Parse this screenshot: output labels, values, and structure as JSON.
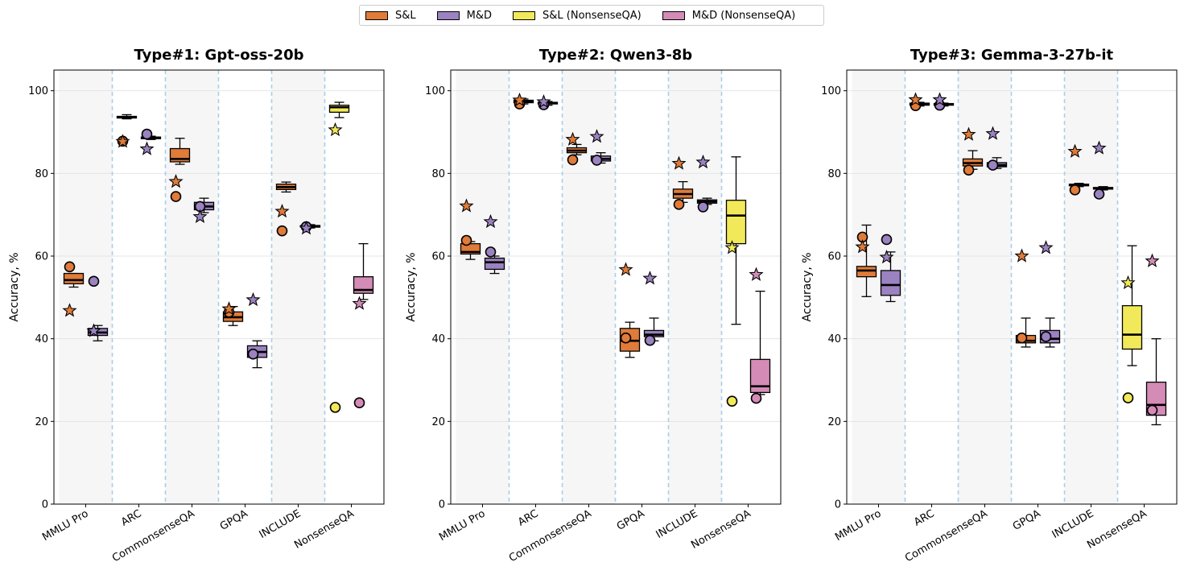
{
  "chart_data": {
    "type": "box",
    "legend": [
      {
        "name": "S&L",
        "color": "#e07b39"
      },
      {
        "name": "M&D",
        "color": "#9b82c0"
      },
      {
        "name": "S&L (NonsenseQA)",
        "color": "#f2e95a"
      },
      {
        "name": "M&D (NonsenseQA)",
        "color": "#d48bb6"
      }
    ],
    "ylabel": "Accuracy, %",
    "ylim": [
      0,
      105
    ],
    "yticks": [
      0,
      20,
      40,
      60,
      80,
      100
    ],
    "categories": [
      "MMLU Pro",
      "ARC",
      "CommonsenseQA",
      "GPQA",
      "INCLUDE",
      "NonsenseQA"
    ],
    "panels": [
      {
        "title": "Type#1: Gpt-oss-20b",
        "boxes": [
          {
            "category": "MMLU Pro",
            "group": "S&L",
            "min": 52.5,
            "q1": 53.3,
            "median": 54.2,
            "q3": 55.8,
            "max": 55.8,
            "circle": 57.4,
            "star": 46.8
          },
          {
            "category": "MMLU Pro",
            "group": "M&D",
            "min": 39.5,
            "q1": 40.8,
            "median": 41.5,
            "q3": 42.5,
            "max": 43.2,
            "circle": 53.9,
            "star": 41.9
          },
          {
            "category": "ARC",
            "group": "S&L",
            "min": 93.2,
            "q1": 93.4,
            "median": 93.6,
            "q3": 93.8,
            "max": 94.2,
            "circle": 87.8,
            "star": 87.7
          },
          {
            "category": "ARC",
            "group": "M&D",
            "min": 88.2,
            "q1": 88.4,
            "median": 88.6,
            "q3": 88.8,
            "max": 89.0,
            "circle": 89.5,
            "star": 85.9
          },
          {
            "category": "CommonsenseQA",
            "group": "S&L",
            "min": 82.2,
            "q1": 82.8,
            "median": 83.5,
            "q3": 86.0,
            "max": 88.5,
            "circle": 74.4,
            "star": 78.0
          },
          {
            "category": "CommonsenseQA",
            "group": "M&D",
            "min": 70.5,
            "q1": 71.2,
            "median": 72.0,
            "q3": 73.0,
            "max": 74.0,
            "circle": 72.0,
            "star": 69.5
          },
          {
            "category": "GPQA",
            "group": "S&L",
            "min": 43.2,
            "q1": 44.2,
            "median": 45.2,
            "q3": 46.5,
            "max": 47.8,
            "circle": 46.4,
            "star": 47.2
          },
          {
            "category": "GPQA",
            "group": "M&D",
            "min": 33.0,
            "q1": 35.5,
            "median": 36.8,
            "q3": 38.3,
            "max": 39.5,
            "circle": 36.3,
            "star": 49.4
          },
          {
            "category": "INCLUDE",
            "group": "S&L",
            "min": 75.5,
            "q1": 76.1,
            "median": 76.7,
            "q3": 77.4,
            "max": 77.9,
            "circle": 66.1,
            "star": 70.8
          },
          {
            "category": "INCLUDE",
            "group": "M&D",
            "min": 66.8,
            "q1": 67.0,
            "median": 67.2,
            "q3": 67.4,
            "max": 67.6,
            "circle": 67.1,
            "star": 66.7
          },
          {
            "category": "NonsenseQA",
            "group": "S&L (NonsenseQA)",
            "min": 93.5,
            "q1": 94.8,
            "median": 96.0,
            "q3": 96.5,
            "max": 97.2,
            "circle": 23.4,
            "star": 90.5
          },
          {
            "category": "NonsenseQA",
            "group": "M&D (NonsenseQA)",
            "min": 49.5,
            "q1": 51.0,
            "median": 51.8,
            "q3": 55.0,
            "max": 63.0,
            "circle": 24.5,
            "star": 48.5
          }
        ]
      },
      {
        "title": "Type#2: Qwen3-8b",
        "boxes": [
          {
            "category": "MMLU Pro",
            "group": "S&L",
            "min": 59.2,
            "q1": 60.5,
            "median": 61.0,
            "q3": 63.0,
            "max": 63.5,
            "circle": 63.8,
            "star": 72.1
          },
          {
            "category": "MMLU Pro",
            "group": "M&D",
            "min": 55.8,
            "q1": 56.8,
            "median": 58.5,
            "q3": 59.5,
            "max": 60.0,
            "circle": 61.0,
            "star": 68.3
          },
          {
            "category": "ARC",
            "group": "S&L",
            "min": 96.8,
            "q1": 97.1,
            "median": 97.4,
            "q3": 97.7,
            "max": 98.0,
            "circle": 96.8,
            "star": 97.7
          },
          {
            "category": "ARC",
            "group": "M&D",
            "min": 96.5,
            "q1": 96.8,
            "median": 97.0,
            "q3": 97.2,
            "max": 97.4,
            "circle": 96.6,
            "star": 97.3
          },
          {
            "category": "CommonsenseQA",
            "group": "S&L",
            "min": 84.5,
            "q1": 85.0,
            "median": 85.5,
            "q3": 86.2,
            "max": 87.0,
            "circle": 83.3,
            "star": 88.2
          },
          {
            "category": "CommonsenseQA",
            "group": "M&D",
            "min": 82.5,
            "q1": 83.0,
            "median": 83.5,
            "q3": 84.2,
            "max": 85.0,
            "circle": 83.2,
            "star": 88.9
          },
          {
            "category": "GPQA",
            "group": "S&L",
            "min": 35.5,
            "q1": 37.0,
            "median": 39.5,
            "q3": 42.5,
            "max": 44.0,
            "circle": 40.2,
            "star": 56.7
          },
          {
            "category": "GPQA",
            "group": "M&D",
            "min": 39.5,
            "q1": 40.5,
            "median": 41.0,
            "q3": 42.0,
            "max": 45.0,
            "circle": 39.6,
            "star": 54.6
          },
          {
            "category": "INCLUDE",
            "group": "S&L",
            "min": 73.0,
            "q1": 74.0,
            "median": 75.0,
            "q3": 76.2,
            "max": 78.0,
            "circle": 72.5,
            "star": 82.4
          },
          {
            "category": "INCLUDE",
            "group": "M&D",
            "min": 72.5,
            "q1": 72.8,
            "median": 73.2,
            "q3": 73.6,
            "max": 74.0,
            "circle": 71.9,
            "star": 82.7
          },
          {
            "category": "NonsenseQA",
            "group": "S&L (NonsenseQA)",
            "min": 43.5,
            "q1": 63.0,
            "median": 69.8,
            "q3": 73.5,
            "max": 84.0,
            "circle": 24.9,
            "star": 62.0
          },
          {
            "category": "NonsenseQA",
            "group": "M&D (NonsenseQA)",
            "min": 26.5,
            "q1": 27.0,
            "median": 28.5,
            "q3": 35.0,
            "max": 51.5,
            "circle": 25.6,
            "star": 55.5
          }
        ]
      },
      {
        "title": "Type#3: Gemma-3-27b-it",
        "boxes": [
          {
            "category": "MMLU Pro",
            "group": "S&L",
            "min": 50.2,
            "q1": 55.0,
            "median": 56.5,
            "q3": 57.5,
            "max": 67.5,
            "circle": 64.6,
            "star": 62.2
          },
          {
            "category": "MMLU Pro",
            "group": "M&D",
            "min": 49.0,
            "q1": 50.5,
            "median": 53.0,
            "q3": 56.5,
            "max": 61.0,
            "circle": 64.0,
            "star": 59.7
          },
          {
            "category": "ARC",
            "group": "S&L",
            "min": 96.3,
            "q1": 96.5,
            "median": 96.7,
            "q3": 97.0,
            "max": 97.2,
            "circle": 96.4,
            "star": 97.8
          },
          {
            "category": "ARC",
            "group": "M&D",
            "min": 96.3,
            "q1": 96.5,
            "median": 96.7,
            "q3": 96.9,
            "max": 97.0,
            "circle": 96.5,
            "star": 97.8
          },
          {
            "category": "CommonsenseQA",
            "group": "S&L",
            "min": 81.0,
            "q1": 81.8,
            "median": 82.5,
            "q3": 83.5,
            "max": 85.5,
            "circle": 80.8,
            "star": 89.4
          },
          {
            "category": "CommonsenseQA",
            "group": "M&D",
            "min": 81.2,
            "q1": 81.6,
            "median": 82.0,
            "q3": 82.6,
            "max": 83.8,
            "circle": 82.0,
            "star": 89.6
          },
          {
            "category": "GPQA",
            "group": "S&L",
            "min": 38.0,
            "q1": 39.0,
            "median": 39.5,
            "q3": 40.8,
            "max": 45.0,
            "circle": 40.2,
            "star": 60.0
          },
          {
            "category": "GPQA",
            "group": "M&D",
            "min": 38.0,
            "q1": 39.0,
            "median": 40.0,
            "q3": 42.0,
            "max": 45.0,
            "circle": 40.5,
            "star": 62.0
          },
          {
            "category": "INCLUDE",
            "group": "S&L",
            "min": 76.8,
            "q1": 77.0,
            "median": 77.2,
            "q3": 77.4,
            "max": 77.6,
            "circle": 76.0,
            "star": 85.3
          },
          {
            "category": "INCLUDE",
            "group": "M&D",
            "min": 76.0,
            "q1": 76.2,
            "median": 76.4,
            "q3": 76.6,
            "max": 76.8,
            "circle": 75.0,
            "star": 86.1
          },
          {
            "category": "NonsenseQA",
            "group": "S&L (NonsenseQA)",
            "min": 33.5,
            "q1": 37.5,
            "median": 41.0,
            "q3": 48.0,
            "max": 62.5,
            "circle": 25.7,
            "star": 53.5
          },
          {
            "category": "NonsenseQA",
            "group": "M&D (NonsenseQA)",
            "min": 19.2,
            "q1": 21.5,
            "median": 24.0,
            "q3": 29.5,
            "max": 40.0,
            "circle": 22.7,
            "star": 58.8
          }
        ]
      }
    ]
  }
}
